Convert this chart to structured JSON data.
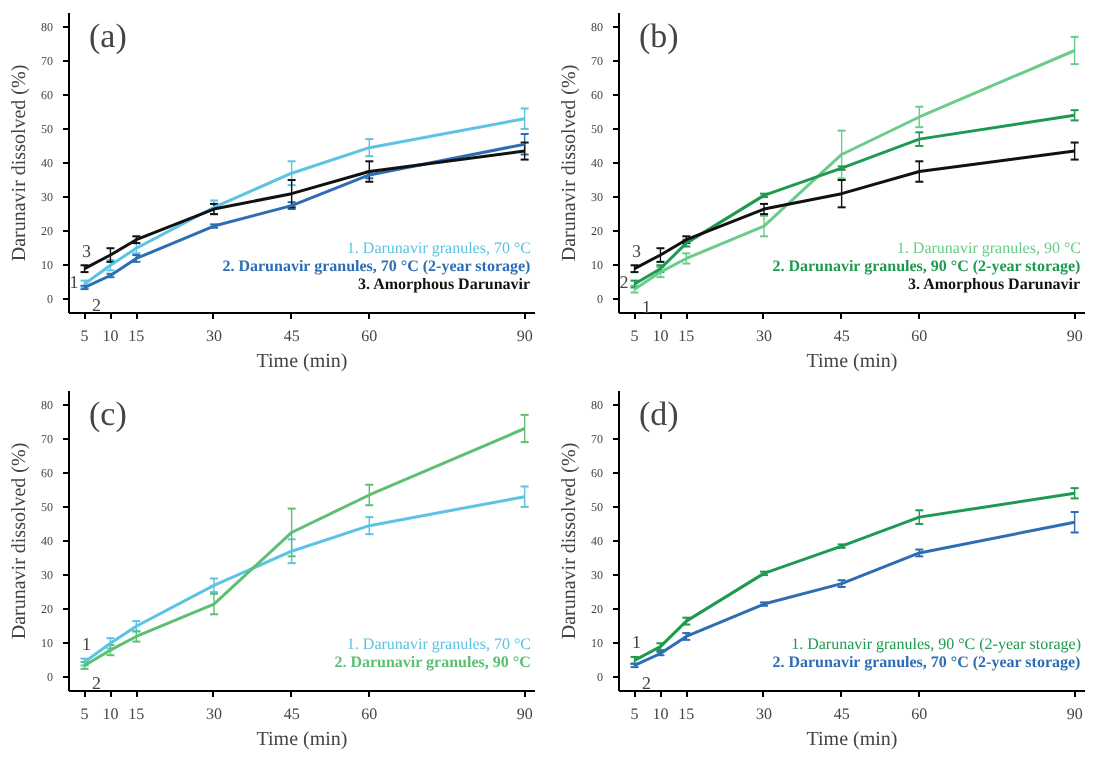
{
  "chart_data": [
    {
      "type": "line",
      "title": "(a)",
      "xlabel": "Time (min)",
      "ylabel": "Darunavir dissolved (%)",
      "x": [
        5,
        10,
        15,
        30,
        45,
        60,
        90
      ],
      "xlim": [
        2,
        92
      ],
      "ylim": [
        -4,
        84
      ],
      "xticks": [
        5,
        10,
        15,
        30,
        45,
        60,
        90
      ],
      "yticks": [
        0,
        10,
        20,
        30,
        40,
        50,
        60,
        70,
        80
      ],
      "legend": "bottom right",
      "marker": "none",
      "line_style": "solid",
      "series": [
        {
          "name": "1. Darunavir granules, 70 °C",
          "color": "#5bc3e3",
          "values": [
            4.5,
            10,
            15,
            27,
            37,
            44.5,
            53
          ],
          "errors": [
            1,
            1.5,
            1.5,
            2,
            3.5,
            2.5,
            3
          ]
        },
        {
          "name": "2. Darunavir granules, 70 °C (2-year storage)",
          "color": "#2e6db4",
          "values": [
            3.5,
            7,
            12,
            21.5,
            27.5,
            36.5,
            45.5
          ],
          "errors": [
            0.5,
            0.5,
            1,
            0.5,
            1,
            1,
            3
          ]
        },
        {
          "name": "3. Amorphous Darunavir",
          "color": "#111111",
          "values": [
            9,
            13,
            17.5,
            26.5,
            31,
            37.5,
            43.5
          ],
          "errors": [
            1,
            2,
            1,
            1.5,
            4,
            3,
            2.5
          ]
        }
      ],
      "annotations": [
        "1",
        "2",
        "3"
      ]
    },
    {
      "type": "line",
      "title": "(b)",
      "xlabel": "Time (min)",
      "ylabel": "Darunavir dissolved (%)",
      "x": [
        5,
        10,
        15,
        30,
        45,
        60,
        90
      ],
      "xlim": [
        2,
        92
      ],
      "ylim": [
        -4,
        84
      ],
      "xticks": [
        5,
        10,
        15,
        30,
        45,
        60,
        90
      ],
      "yticks": [
        0,
        10,
        20,
        30,
        40,
        50,
        60,
        70,
        80
      ],
      "legend": "bottom right",
      "marker": "none",
      "line_style": "solid",
      "series": [
        {
          "name": "1. Darunavir granules, 90 °C",
          "color": "#6acb8a",
          "values": [
            3,
            8,
            12,
            21.5,
            42.5,
            53.5,
            73
          ],
          "errors": [
            1,
            1.5,
            1.5,
            3,
            7,
            3,
            4
          ]
        },
        {
          "name": "2. Darunavir granules, 90 °C (2-year storage)",
          "color": "#1e9a50",
          "values": [
            4.5,
            9,
            16.5,
            30.5,
            38.5,
            47,
            54
          ],
          "errors": [
            1,
            1,
            1,
            0.5,
            0.5,
            2,
            1.5
          ]
        },
        {
          "name": "3. Amorphous Darunavir",
          "color": "#111111",
          "values": [
            9,
            13,
            17.5,
            26.5,
            31,
            37.5,
            43.5
          ],
          "errors": [
            1,
            2,
            1,
            1.5,
            4,
            3,
            2.5
          ]
        }
      ],
      "annotations": [
        "1",
        "2",
        "3"
      ]
    },
    {
      "type": "line",
      "title": "(c)",
      "xlabel": "Time (min)",
      "ylabel": "Darunavir dissolved (%)",
      "x": [
        5,
        10,
        15,
        30,
        45,
        60,
        90
      ],
      "xlim": [
        2,
        92
      ],
      "ylim": [
        -4,
        84
      ],
      "xticks": [
        5,
        10,
        15,
        30,
        45,
        60,
        90
      ],
      "yticks": [
        0,
        10,
        20,
        30,
        40,
        50,
        60,
        70,
        80
      ],
      "legend": "bottom right",
      "marker": "none",
      "line_style": "solid",
      "series": [
        {
          "name": "1. Darunavir granules, 70 °C",
          "color": "#5bc3e3",
          "values": [
            4.5,
            10,
            15,
            27,
            37,
            44.5,
            53
          ],
          "errors": [
            1,
            1.5,
            1.5,
            2,
            3.5,
            2.5,
            3
          ]
        },
        {
          "name": "2. Darunavir granules, 90 °C",
          "color": "#5cbf73",
          "values": [
            3.5,
            8,
            12,
            21.5,
            42.5,
            53.5,
            73
          ],
          "errors": [
            1,
            1.5,
            1.5,
            3,
            7,
            3,
            4
          ]
        }
      ],
      "annotations": [
        "1",
        "2"
      ]
    },
    {
      "type": "line",
      "title": "(d)",
      "xlabel": "Time (min)",
      "ylabel": "Darunavir dissolved (%)",
      "x": [
        5,
        10,
        15,
        30,
        45,
        60,
        90
      ],
      "xlim": [
        2,
        92
      ],
      "ylim": [
        -4,
        84
      ],
      "xticks": [
        5,
        10,
        15,
        30,
        45,
        60,
        90
      ],
      "yticks": [
        0,
        10,
        20,
        30,
        40,
        50,
        60,
        70,
        80
      ],
      "legend": "bottom right",
      "marker": "none",
      "line_style": "solid",
      "series": [
        {
          "name": "1. Darunavir granules, 90 °C (2-year storage)",
          "color": "#1e9a50",
          "values": [
            5,
            9,
            16.5,
            30.5,
            38.5,
            47,
            54
          ],
          "errors": [
            1,
            1,
            1,
            0.5,
            0.5,
            2,
            1.5
          ]
        },
        {
          "name": "2. Darunavir granules, 70 °C (2-year storage)",
          "color": "#2e6db4",
          "values": [
            3.5,
            7,
            12,
            21.5,
            27.5,
            36.5,
            45.5
          ],
          "errors": [
            0.5,
            0.5,
            1,
            0.5,
            1,
            1,
            3
          ]
        }
      ],
      "annotations": [
        "1",
        "2"
      ]
    }
  ]
}
